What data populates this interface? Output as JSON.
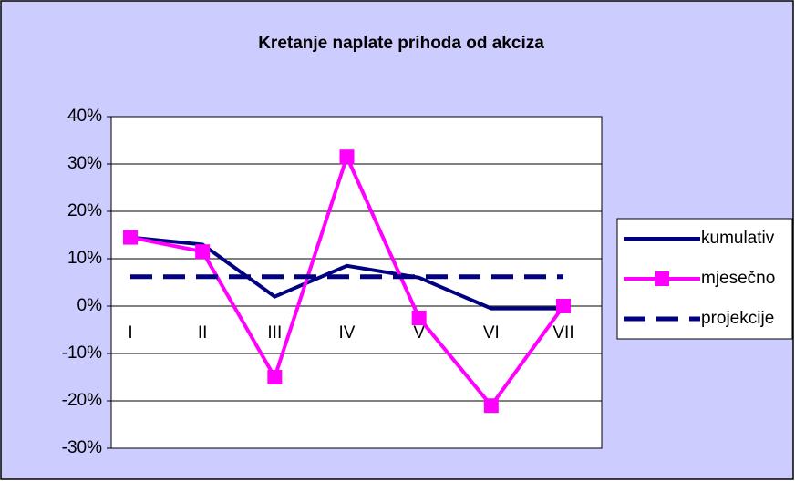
{
  "chart_data": {
    "type": "line",
    "title": "Kretanje naplate prihoda od akciza",
    "categories": [
      "I",
      "II",
      "III",
      "IV",
      "V",
      "VI",
      "VII"
    ],
    "series": [
      {
        "name": "kumulativ",
        "color": "#000080",
        "values": [
          14.5,
          13,
          2,
          8.5,
          6,
          -0.5,
          -0.5
        ]
      },
      {
        "name": "mjesečno",
        "color": "#ff00ff",
        "values": [
          14.5,
          11.5,
          -15,
          31.5,
          -2.5,
          -21,
          0
        ]
      },
      {
        "name": "projekcije",
        "color": "#000080",
        "dashed": true,
        "values": [
          6.2,
          6.2,
          6.2,
          6.2,
          6.2,
          6.2,
          6.2
        ]
      }
    ],
    "ylim": [
      -30,
      40
    ],
    "yticks": [
      {
        "value": -30,
        "label": "-30%"
      },
      {
        "value": -20,
        "label": "-20%"
      },
      {
        "value": -10,
        "label": "-10%"
      },
      {
        "value": 0,
        "label": "0%"
      },
      {
        "value": 10,
        "label": "10%"
      },
      {
        "value": 20,
        "label": "20%"
      },
      {
        "value": 30,
        "label": "30%"
      },
      {
        "value": 40,
        "label": "40%"
      }
    ],
    "grid": true,
    "legend": "right"
  }
}
